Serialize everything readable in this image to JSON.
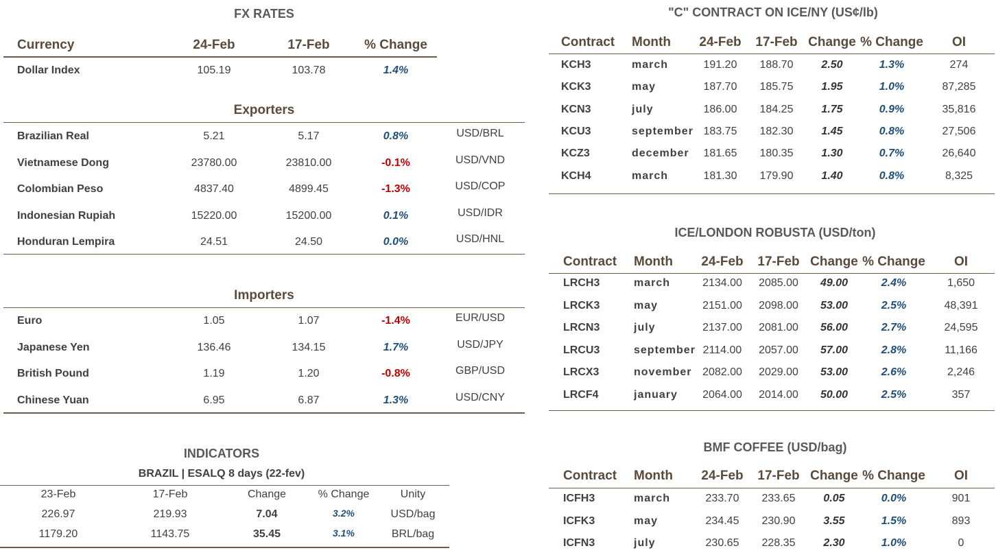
{
  "fx": {
    "title": "FX RATES",
    "headers": [
      "Currency",
      "24-Feb",
      "17-Feb",
      "% Change"
    ],
    "dollar_index": [
      "Dollar Index",
      "105.19",
      "103.78",
      "1.4%"
    ],
    "exporters": {
      "title": "Exporters",
      "rows": [
        [
          "Brazilian Real",
          "5.21",
          "5.17",
          "0.8%",
          "USD/BRL"
        ],
        [
          "Vietnamese Dong",
          "23780.00",
          "23810.00",
          "-0.1%",
          "USD/VND"
        ],
        [
          "Colombian Peso",
          "4837.40",
          "4899.45",
          "-1.3%",
          "USD/COP"
        ],
        [
          "Indonesian Rupiah",
          "15220.00",
          "15200.00",
          "0.1%",
          "USD/IDR"
        ],
        [
          "Honduran Lempira",
          "24.51",
          "24.50",
          "0.0%",
          "USD/HNL"
        ]
      ]
    },
    "importers": {
      "title": "Importers",
      "rows": [
        [
          "Euro",
          "1.05",
          "1.07",
          "-1.4%",
          "EUR/USD"
        ],
        [
          "Japanese Yen",
          "136.46",
          "134.15",
          "1.7%",
          "USD/JPY"
        ],
        [
          "British Pound",
          "1.19",
          "1.20",
          "-0.8%",
          "GBP/USD"
        ],
        [
          "Chinese Yuan",
          "6.95",
          "6.87",
          "1.3%",
          "USD/CNY"
        ]
      ]
    }
  },
  "indicators": {
    "title": "INDICATORS",
    "subtitle": "BRAZIL | ESALQ 8 days (22-fev)",
    "headers": [
      "23-Feb",
      "17-Feb",
      "Change",
      "% Change",
      "Unity"
    ],
    "rows": [
      [
        "226.97",
        "219.93",
        "7.04",
        "3.2%",
        "USD/bag"
      ],
      [
        "1179.20",
        "1143.75",
        "35.45",
        "3.1%",
        "BRL/bag"
      ]
    ]
  },
  "c_contract": {
    "title": "\"C\" CONTRACT ON ICE/NY (US¢/lb)",
    "headers": [
      "Contract",
      "Month",
      "24-Feb",
      "17-Feb",
      "Change",
      "% Change",
      "OI"
    ],
    "rows": [
      [
        "KCH3",
        "march",
        "191.20",
        "188.70",
        "2.50",
        "1.3%",
        "274"
      ],
      [
        "KCK3",
        "may",
        "187.70",
        "185.75",
        "1.95",
        "1.0%",
        "87,285"
      ],
      [
        "KCN3",
        "july",
        "186.00",
        "184.25",
        "1.75",
        "0.9%",
        "35,816"
      ],
      [
        "KCU3",
        "september",
        "183.75",
        "182.30",
        "1.45",
        "0.8%",
        "27,506"
      ],
      [
        "KCZ3",
        "december",
        "181.65",
        "180.35",
        "1.30",
        "0.7%",
        "26,640"
      ],
      [
        "KCH4",
        "march",
        "181.30",
        "179.90",
        "1.40",
        "0.8%",
        "8,325"
      ]
    ]
  },
  "robusta": {
    "title": "ICE/LONDON ROBUSTA (USD/ton)",
    "headers": [
      "Contract",
      "Month",
      "24-Feb",
      "17-Feb",
      "Change",
      "% Change",
      "OI"
    ],
    "rows": [
      [
        "LRCH3",
        "march",
        "2134.00",
        "2085.00",
        "49.00",
        "2.4%",
        "1,650"
      ],
      [
        "LRCK3",
        "may",
        "2151.00",
        "2098.00",
        "53.00",
        "2.5%",
        "48,391"
      ],
      [
        "LRCN3",
        "july",
        "2137.00",
        "2081.00",
        "56.00",
        "2.7%",
        "24,595"
      ],
      [
        "LRCU3",
        "september",
        "2114.00",
        "2057.00",
        "57.00",
        "2.8%",
        "11,166"
      ],
      [
        "LRCX3",
        "november",
        "2082.00",
        "2029.00",
        "53.00",
        "2.6%",
        "2,246"
      ],
      [
        "LRCF4",
        "january",
        "2064.00",
        "2014.00",
        "50.00",
        "2.5%",
        "357"
      ]
    ]
  },
  "bmf": {
    "title": "BMF COFFEE (USD/bag)",
    "headers": [
      "Contract",
      "Month",
      "24-Feb",
      "17-Feb",
      "Change",
      "% Change",
      "OI"
    ],
    "rows": [
      [
        "ICFH3",
        "march",
        "233.70",
        "233.65",
        "0.05",
        "0.0%",
        "901"
      ],
      [
        "ICFK3",
        "may",
        "234.45",
        "230.90",
        "3.55",
        "1.5%",
        "893"
      ],
      [
        "ICFN3",
        "july",
        "230.65",
        "228.35",
        "2.30",
        "1.0%",
        "0"
      ]
    ]
  }
}
